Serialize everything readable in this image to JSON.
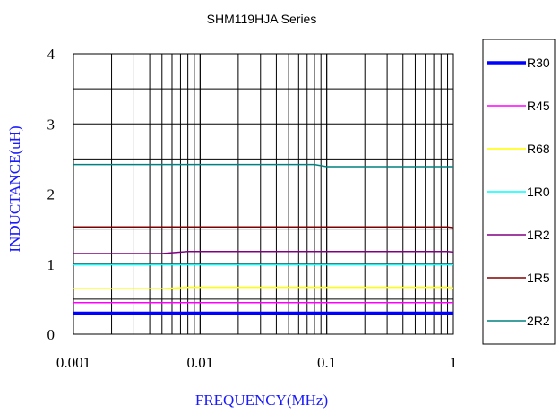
{
  "chart_data": {
    "type": "line",
    "title": "SHM119HJA Series",
    "xlabel": "FREQUENCY(MHz)",
    "ylabel": "INDUCTANCE(uH)",
    "x_scale": "log",
    "xlim": [
      0.001,
      1
    ],
    "ylim": [
      0,
      4
    ],
    "x_ticks": [
      "0.001",
      "0.01",
      "0.1",
      "1"
    ],
    "y_ticks": [
      "0",
      "1",
      "2",
      "3",
      "4"
    ],
    "grid": true,
    "legend_position": "right",
    "x": [
      0.001,
      0.003,
      0.005,
      0.008,
      0.02,
      0.06,
      0.08,
      0.1,
      0.3,
      0.9,
      1.0
    ],
    "series": [
      {
        "name": "R30",
        "color": "#0000ff",
        "thick": true,
        "values": [
          0.3,
          0.3,
          0.3,
          0.3,
          0.3,
          0.3,
          0.3,
          0.3,
          0.3,
          0.3,
          0.3
        ]
      },
      {
        "name": "R45",
        "color": "#ff00ff",
        "thick": false,
        "values": [
          0.45,
          0.45,
          0.45,
          0.45,
          0.45,
          0.45,
          0.45,
          0.45,
          0.45,
          0.45,
          0.45
        ]
      },
      {
        "name": "R68",
        "color": "#ffff00",
        "thick": false,
        "values": [
          0.65,
          0.65,
          0.65,
          0.67,
          0.67,
          0.67,
          0.67,
          0.67,
          0.67,
          0.67,
          0.66
        ]
      },
      {
        "name": "1R0",
        "color": "#00ffff",
        "thick": false,
        "values": [
          0.99,
          0.99,
          0.99,
          0.99,
          0.99,
          0.99,
          0.99,
          0.99,
          0.99,
          0.99,
          0.99
        ]
      },
      {
        "name": "1R2",
        "color": "#800080",
        "thick": false,
        "values": [
          1.15,
          1.15,
          1.15,
          1.18,
          1.18,
          1.18,
          1.18,
          1.18,
          1.18,
          1.18,
          1.17
        ]
      },
      {
        "name": "1R5",
        "color": "#800000",
        "thick": false,
        "values": [
          1.53,
          1.53,
          1.53,
          1.53,
          1.53,
          1.53,
          1.53,
          1.53,
          1.53,
          1.53,
          1.52
        ]
      },
      {
        "name": "2R2",
        "color": "#008080",
        "thick": false,
        "values": [
          2.42,
          2.42,
          2.42,
          2.42,
          2.42,
          2.42,
          2.42,
          2.39,
          2.39,
          2.39,
          2.39
        ]
      }
    ]
  }
}
